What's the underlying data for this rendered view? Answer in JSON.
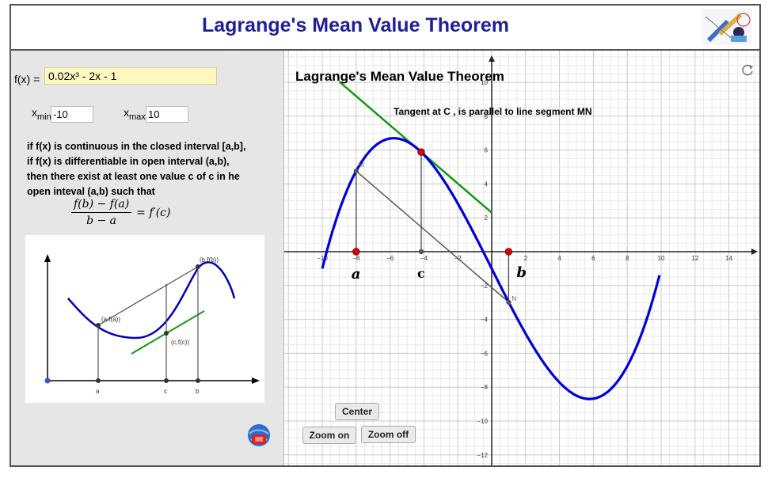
{
  "header": {
    "title": "Lagrange's Mean Value Theorem"
  },
  "controls": {
    "fx_label": "f(x) =",
    "fx_value": "0.02x³ - 2x - 1",
    "xmin_label": "x",
    "xmin_sub": "min",
    "xmin_value": "-10",
    "xmax_label": "x",
    "xmax_sub": "max",
    "xmax_value": "10"
  },
  "theorem": {
    "line1": "if f(x) is continuous in the closed interval [a,b],",
    "line2": "if f(x) is differentiable in  open interval (a,b),",
    "line3": "then there exist at least one value c of c in he",
    "line4": "open inteval (a,b) such that",
    "formula_num": "f(b) − f(a)",
    "formula_den": "b − a",
    "formula_rhs": "= f′(c)"
  },
  "thumbnail": {
    "label_af": "(a,f(a))",
    "label_bf": "(b,f(b))",
    "label_cf": "(c,f(c))",
    "label_a": "a",
    "label_c": "c",
    "label_b": "b"
  },
  "graph": {
    "title": "Lagrange's Mean Value Theorem",
    "tangent_text": "Tangent at C , is parallel to line segment MN",
    "point_a_label": "a",
    "point_c_label": "c",
    "point_b_label": "b",
    "point_m_label": "M",
    "point_n_label": "N",
    "center_btn": "Center",
    "zoom_on_btn": "Zoom on",
    "zoom_off_btn": "Zoom off",
    "x_ticks": [
      "−10",
      "−8",
      "−6",
      "−4",
      "−2",
      "2",
      "4",
      "6",
      "8",
      "10",
      "12",
      "14"
    ],
    "y_ticks": [
      "10",
      "8",
      "6",
      "4",
      "2",
      "−2",
      "−4",
      "−6",
      "−8",
      "−10",
      "−12"
    ],
    "colors": {
      "curve": "#0000dd",
      "tangent": "#119911",
      "points": "#dd0000"
    }
  }
}
